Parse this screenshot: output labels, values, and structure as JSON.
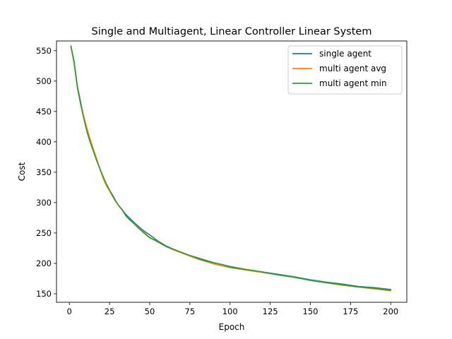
{
  "chart_data": {
    "type": "line",
    "title": "Single and Multiagent, Linear Controller Linear System",
    "xlabel": "Epoch",
    "ylabel": "Cost",
    "xlim": [
      -8,
      210
    ],
    "ylim": [
      136,
      566
    ],
    "xticks": [
      "0",
      "25",
      "50",
      "75",
      "100",
      "125",
      "150",
      "175",
      "200"
    ],
    "yticks": [
      "150",
      "200",
      "250",
      "300",
      "350",
      "400",
      "450",
      "500",
      "550"
    ],
    "grid": false,
    "legend_position": "top-right",
    "series": [
      {
        "name": "single agent",
        "color": "#1f77b4",
        "points": [
          [
            1,
            557
          ],
          [
            3,
            532
          ],
          [
            5,
            492
          ],
          [
            7,
            466
          ],
          [
            9,
            440
          ],
          [
            11,
            418
          ],
          [
            13,
            400
          ],
          [
            15,
            385
          ],
          [
            17,
            370
          ],
          [
            19,
            355
          ],
          [
            21,
            342
          ],
          [
            23,
            330
          ],
          [
            25,
            320
          ],
          [
            27,
            312
          ],
          [
            29,
            302
          ],
          [
            31,
            294
          ],
          [
            33,
            288
          ],
          [
            35,
            281
          ],
          [
            37,
            276
          ],
          [
            40,
            268
          ],
          [
            43,
            261
          ],
          [
            46,
            254
          ],
          [
            50,
            247
          ],
          [
            55,
            237
          ],
          [
            60,
            229
          ],
          [
            65,
            223
          ],
          [
            70,
            218
          ],
          [
            75,
            213
          ],
          [
            80,
            209
          ],
          [
            85,
            205
          ],
          [
            90,
            201
          ],
          [
            95,
            198
          ],
          [
            100,
            195
          ],
          [
            110,
            190
          ],
          [
            120,
            186
          ],
          [
            130,
            182
          ],
          [
            140,
            178
          ],
          [
            150,
            173
          ],
          [
            160,
            169
          ],
          [
            170,
            166
          ],
          [
            180,
            162
          ],
          [
            190,
            160
          ],
          [
            200,
            157
          ]
        ]
      },
      {
        "name": "multi agent avg",
        "color": "#ff7f0e",
        "points": [
          [
            1,
            555
          ],
          [
            3,
            530
          ],
          [
            5,
            490
          ],
          [
            7,
            463
          ],
          [
            9,
            442
          ],
          [
            11,
            422
          ],
          [
            13,
            404
          ],
          [
            15,
            388
          ],
          [
            17,
            372
          ],
          [
            19,
            356
          ],
          [
            21,
            340
          ],
          [
            23,
            328
          ],
          [
            25,
            319
          ],
          [
            27,
            310
          ],
          [
            29,
            301
          ],
          [
            31,
            294
          ],
          [
            33,
            287
          ],
          [
            35,
            279
          ],
          [
            37,
            273
          ],
          [
            40,
            266
          ],
          [
            43,
            259
          ],
          [
            46,
            252
          ],
          [
            50,
            243
          ],
          [
            55,
            235
          ],
          [
            60,
            228
          ],
          [
            65,
            222
          ],
          [
            70,
            217
          ],
          [
            75,
            212
          ],
          [
            80,
            207
          ],
          [
            85,
            203
          ],
          [
            90,
            199
          ],
          [
            95,
            196
          ],
          [
            100,
            193
          ],
          [
            110,
            189
          ],
          [
            120,
            185
          ],
          [
            130,
            181
          ],
          [
            140,
            177
          ],
          [
            150,
            172
          ],
          [
            160,
            168
          ],
          [
            170,
            164
          ],
          [
            180,
            161
          ],
          [
            190,
            158
          ],
          [
            200,
            155
          ]
        ]
      },
      {
        "name": "multi agent min",
        "color": "#2ca02c",
        "points": [
          [
            1,
            558
          ],
          [
            3,
            529
          ],
          [
            5,
            489
          ],
          [
            7,
            462
          ],
          [
            9,
            438
          ],
          [
            11,
            416
          ],
          [
            13,
            399
          ],
          [
            15,
            384
          ],
          [
            17,
            369
          ],
          [
            19,
            356
          ],
          [
            21,
            343
          ],
          [
            23,
            331
          ],
          [
            25,
            321
          ],
          [
            27,
            311
          ],
          [
            29,
            302
          ],
          [
            31,
            294
          ],
          [
            33,
            288
          ],
          [
            35,
            279
          ],
          [
            37,
            273
          ],
          [
            40,
            266
          ],
          [
            43,
            258
          ],
          [
            46,
            251
          ],
          [
            50,
            242
          ],
          [
            55,
            236
          ],
          [
            60,
            228
          ],
          [
            65,
            223
          ],
          [
            70,
            218
          ],
          [
            75,
            213
          ],
          [
            80,
            208
          ],
          [
            85,
            204
          ],
          [
            90,
            201
          ],
          [
            95,
            198
          ],
          [
            100,
            194
          ],
          [
            110,
            190
          ],
          [
            120,
            186
          ],
          [
            130,
            181
          ],
          [
            140,
            177
          ],
          [
            150,
            172
          ],
          [
            160,
            168
          ],
          [
            170,
            165
          ],
          [
            180,
            161
          ],
          [
            190,
            159
          ],
          [
            200,
            156
          ]
        ]
      }
    ]
  }
}
